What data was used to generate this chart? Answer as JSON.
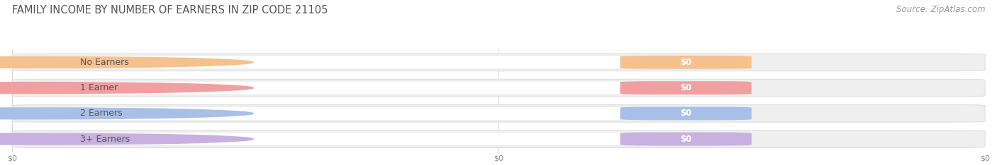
{
  "title": "FAMILY INCOME BY NUMBER OF EARNERS IN ZIP CODE 21105",
  "source": "Source: ZipAtlas.com",
  "categories": [
    "No Earners",
    "1 Earner",
    "2 Earners",
    "3+ Earners"
  ],
  "values": [
    0,
    0,
    0,
    0
  ],
  "bar_colors": [
    "#f5c18e",
    "#f0a0a0",
    "#a8c0e8",
    "#c8b0e0"
  ],
  "track_color": "#efefef",
  "track_border_color": "#dddddd",
  "white_pill_color": "#ffffff",
  "background_color": "#ffffff",
  "title_color": "#555555",
  "title_fontsize": 10.5,
  "source_fontsize": 8.5,
  "label_fontsize": 9,
  "value_label_fontsize": 8.5,
  "tick_fontsize": 8,
  "xtick_labels": [
    "$0",
    "$0",
    "$0"
  ]
}
